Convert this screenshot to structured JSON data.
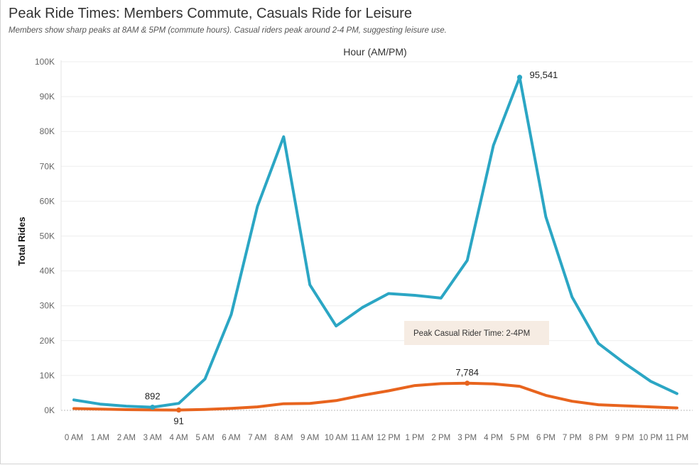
{
  "title": "Peak Ride Times: Members Commute, Casuals Ride for Leisure",
  "subtitle": "Members show sharp peaks at 8AM & 5PM (commute hours). Casual riders peak around 2-4 PM, suggesting leisure use.",
  "colors": {
    "member": "#2ba6c4",
    "casual": "#e8641e",
    "annotation_bg": "#f6ece3",
    "grid": "#eeeeee"
  },
  "chart_data": {
    "type": "line",
    "title": "Peak Ride Times: Members Commute, Casuals Ride for Leisure",
    "xlabel": "Hour (AM/PM)",
    "ylabel": "Total Rides",
    "ylim": [
      0,
      100000
    ],
    "yticks": [
      {
        "value": 0,
        "label": "0K"
      },
      {
        "value": 10000,
        "label": "10K"
      },
      {
        "value": 20000,
        "label": "20K"
      },
      {
        "value": 30000,
        "label": "30K"
      },
      {
        "value": 40000,
        "label": "40K"
      },
      {
        "value": 50000,
        "label": "50K"
      },
      {
        "value": 60000,
        "label": "60K"
      },
      {
        "value": 70000,
        "label": "70K"
      },
      {
        "value": 80000,
        "label": "80K"
      },
      {
        "value": 90000,
        "label": "90K"
      },
      {
        "value": 100000,
        "label": "100K"
      }
    ],
    "categories": [
      "0 AM",
      "1 AM",
      "2 AM",
      "3 AM",
      "4 AM",
      "5 AM",
      "6 AM",
      "7 AM",
      "8 AM",
      "9 AM",
      "10 AM",
      "11 AM",
      "12 PM",
      "1 PM",
      "2 PM",
      "3 PM",
      "4 PM",
      "5 PM",
      "6 PM",
      "7 PM",
      "8 PM",
      "9 PM",
      "10 PM",
      "11 PM"
    ],
    "grid": true,
    "legend": "none",
    "series": [
      {
        "key": "member",
        "values": [
          3000,
          1800,
          1200,
          892,
          2000,
          9000,
          27500,
          58500,
          78500,
          36000,
          24200,
          29500,
          33500,
          33000,
          32200,
          43000,
          76000,
          95541,
          55500,
          32500,
          19200,
          13500,
          8300,
          4800
        ]
      },
      {
        "key": "casual",
        "values": [
          500,
          350,
          200,
          130,
          91,
          250,
          550,
          1000,
          1900,
          2000,
          2800,
          4300,
          5600,
          7100,
          7650,
          7784,
          7600,
          6900,
          4300,
          2600,
          1600,
          1300,
          1000,
          700
        ]
      }
    ],
    "data_labels": [
      {
        "series": "member",
        "index": 3,
        "text": "892"
      },
      {
        "series": "member",
        "index": 17,
        "text": "95,541"
      },
      {
        "series": "casual",
        "index": 4,
        "text": "91"
      },
      {
        "series": "casual",
        "index": 15,
        "text": "7,784"
      }
    ],
    "annotation": {
      "text": "Peak Casual Rider Time: 2-4PM"
    }
  }
}
